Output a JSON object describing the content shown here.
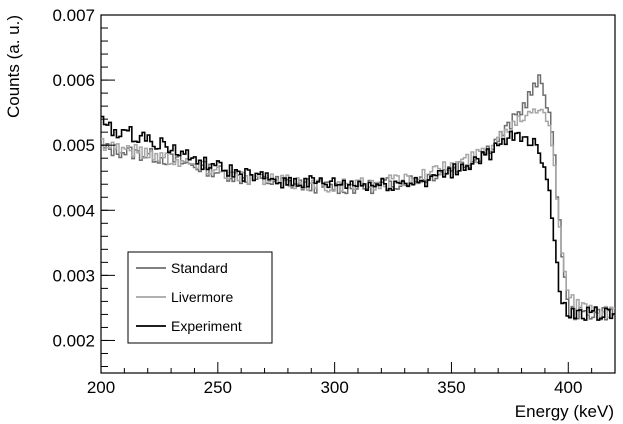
{
  "chart_data": {
    "type": "line",
    "title": "",
    "xlabel": "Energy (keV)",
    "ylabel": "Counts (a. u.)",
    "xlim": [
      200,
      420
    ],
    "ylim": [
      0.0015,
      0.007
    ],
    "xticks": [
      200,
      250,
      300,
      350,
      400
    ],
    "yticks": [
      0.002,
      0.003,
      0.004,
      0.005,
      0.006,
      0.007
    ],
    "xtick_labels": [
      "200",
      "250",
      "300",
      "350",
      "400"
    ],
    "ytick_labels": [
      "0.002",
      "0.003",
      "0.004",
      "0.005",
      "0.006",
      "0.007"
    ],
    "grid": false,
    "legend_position": "bottom-left",
    "series": [
      {
        "name": "Standard",
        "color": "#6e6e6e",
        "step": "hist",
        "x": [
          200,
          210,
          220,
          230,
          240,
          250,
          260,
          270,
          280,
          290,
          300,
          310,
          320,
          330,
          340,
          350,
          360,
          365,
          370,
          375,
          380,
          384,
          386,
          388,
          390,
          392,
          394,
          396,
          398,
          400,
          405,
          410,
          420
        ],
        "y": [
          0.00495,
          0.0049,
          0.00485,
          0.00478,
          0.00468,
          0.0046,
          0.0045,
          0.00445,
          0.00442,
          0.00438,
          0.00436,
          0.00435,
          0.00438,
          0.00445,
          0.00452,
          0.00465,
          0.00478,
          0.00492,
          0.0051,
          0.0053,
          0.00555,
          0.0058,
          0.0059,
          0.006,
          0.0058,
          0.0055,
          0.0048,
          0.004,
          0.0031,
          0.00245,
          0.0024,
          0.00242,
          0.00242
        ]
      },
      {
        "name": "Livermore",
        "color": "#a6a6a6",
        "step": "hist",
        "x": [
          200,
          210,
          220,
          230,
          240,
          250,
          260,
          270,
          280,
          290,
          300,
          310,
          320,
          330,
          340,
          350,
          360,
          365,
          370,
          375,
          380,
          384,
          386,
          388,
          390,
          392,
          394,
          396,
          398,
          400,
          402,
          405,
          410,
          420
        ],
        "y": [
          0.00505,
          0.00495,
          0.00488,
          0.0048,
          0.0047,
          0.00462,
          0.00452,
          0.00447,
          0.00443,
          0.0044,
          0.00438,
          0.00438,
          0.00442,
          0.00448,
          0.00456,
          0.00468,
          0.00482,
          0.00495,
          0.00512,
          0.00528,
          0.00545,
          0.00555,
          0.0056,
          0.00562,
          0.00555,
          0.0053,
          0.0047,
          0.0039,
          0.0032,
          0.0028,
          0.0026,
          0.0025,
          0.00245,
          0.0024
        ]
      },
      {
        "name": "Experiment",
        "color": "#000000",
        "step": "hist",
        "x": [
          200,
          205,
          210,
          220,
          230,
          240,
          250,
          260,
          270,
          280,
          290,
          300,
          310,
          320,
          330,
          340,
          350,
          360,
          370,
          375,
          380,
          384,
          386,
          388,
          390,
          392,
          394,
          396,
          398,
          400,
          405,
          410,
          420
        ],
        "y": [
          0.0054,
          0.0052,
          0.0052,
          0.0051,
          0.00495,
          0.00478,
          0.00465,
          0.00455,
          0.00448,
          0.00444,
          0.00442,
          0.0044,
          0.0044,
          0.00438,
          0.00442,
          0.00448,
          0.00458,
          0.00475,
          0.00495,
          0.0051,
          0.00515,
          0.00508,
          0.005,
          0.0049,
          0.0047,
          0.0043,
          0.0036,
          0.0029,
          0.0025,
          0.0024,
          0.00242,
          0.0024,
          0.00242
        ]
      }
    ]
  }
}
